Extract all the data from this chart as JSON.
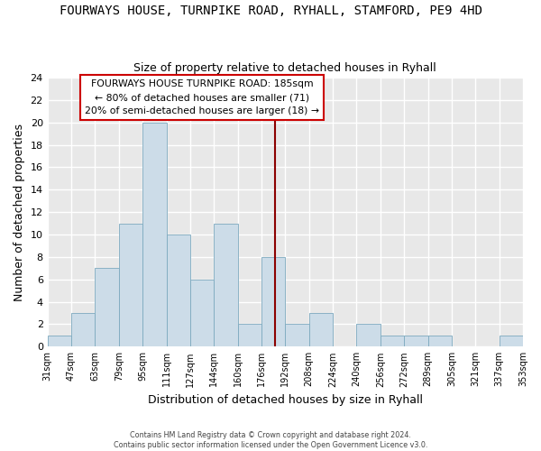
{
  "title": "FOURWAYS HOUSE, TURNPIKE ROAD, RYHALL, STAMFORD, PE9 4HD",
  "subtitle": "Size of property relative to detached houses in Ryhall",
  "xlabel": "Distribution of detached houses by size in Ryhall",
  "ylabel": "Number of detached properties",
  "bin_labels": [
    "31sqm",
    "47sqm",
    "63sqm",
    "79sqm",
    "95sqm",
    "111sqm",
    "127sqm",
    "144sqm",
    "160sqm",
    "176sqm",
    "192sqm",
    "208sqm",
    "224sqm",
    "240sqm",
    "256sqm",
    "272sqm",
    "289sqm",
    "305sqm",
    "321sqm",
    "337sqm",
    "353sqm"
  ],
  "bar_heights": [
    1,
    3,
    7,
    11,
    20,
    10,
    6,
    11,
    2,
    8,
    2,
    3,
    0,
    2,
    1,
    1,
    1,
    0,
    0,
    1
  ],
  "bar_color": "#ccdce8",
  "bar_edge_color": "#7daabf",
  "ylim": [
    0,
    24
  ],
  "yticks": [
    0,
    2,
    4,
    6,
    8,
    10,
    12,
    14,
    16,
    18,
    20,
    22,
    24
  ],
  "bin_values": [
    31,
    47,
    63,
    79,
    95,
    111,
    127,
    144,
    160,
    176,
    192,
    208,
    224,
    240,
    256,
    272,
    289,
    305,
    321,
    337,
    353
  ],
  "target_size": 185,
  "vline_color": "#8b0000",
  "annotation_title": "FOURWAYS HOUSE TURNPIKE ROAD: 185sqm",
  "annotation_line1": "← 80% of detached houses are smaller (71)",
  "annotation_line2": "20% of semi-detached houses are larger (18) →",
  "footer1": "Contains HM Land Registry data © Crown copyright and database right 2024.",
  "footer2": "Contains public sector information licensed under the Open Government Licence v3.0.",
  "background_color": "#ffffff",
  "grid_color": "#ffffff",
  "plot_bg_color": "#e8e8e8"
}
